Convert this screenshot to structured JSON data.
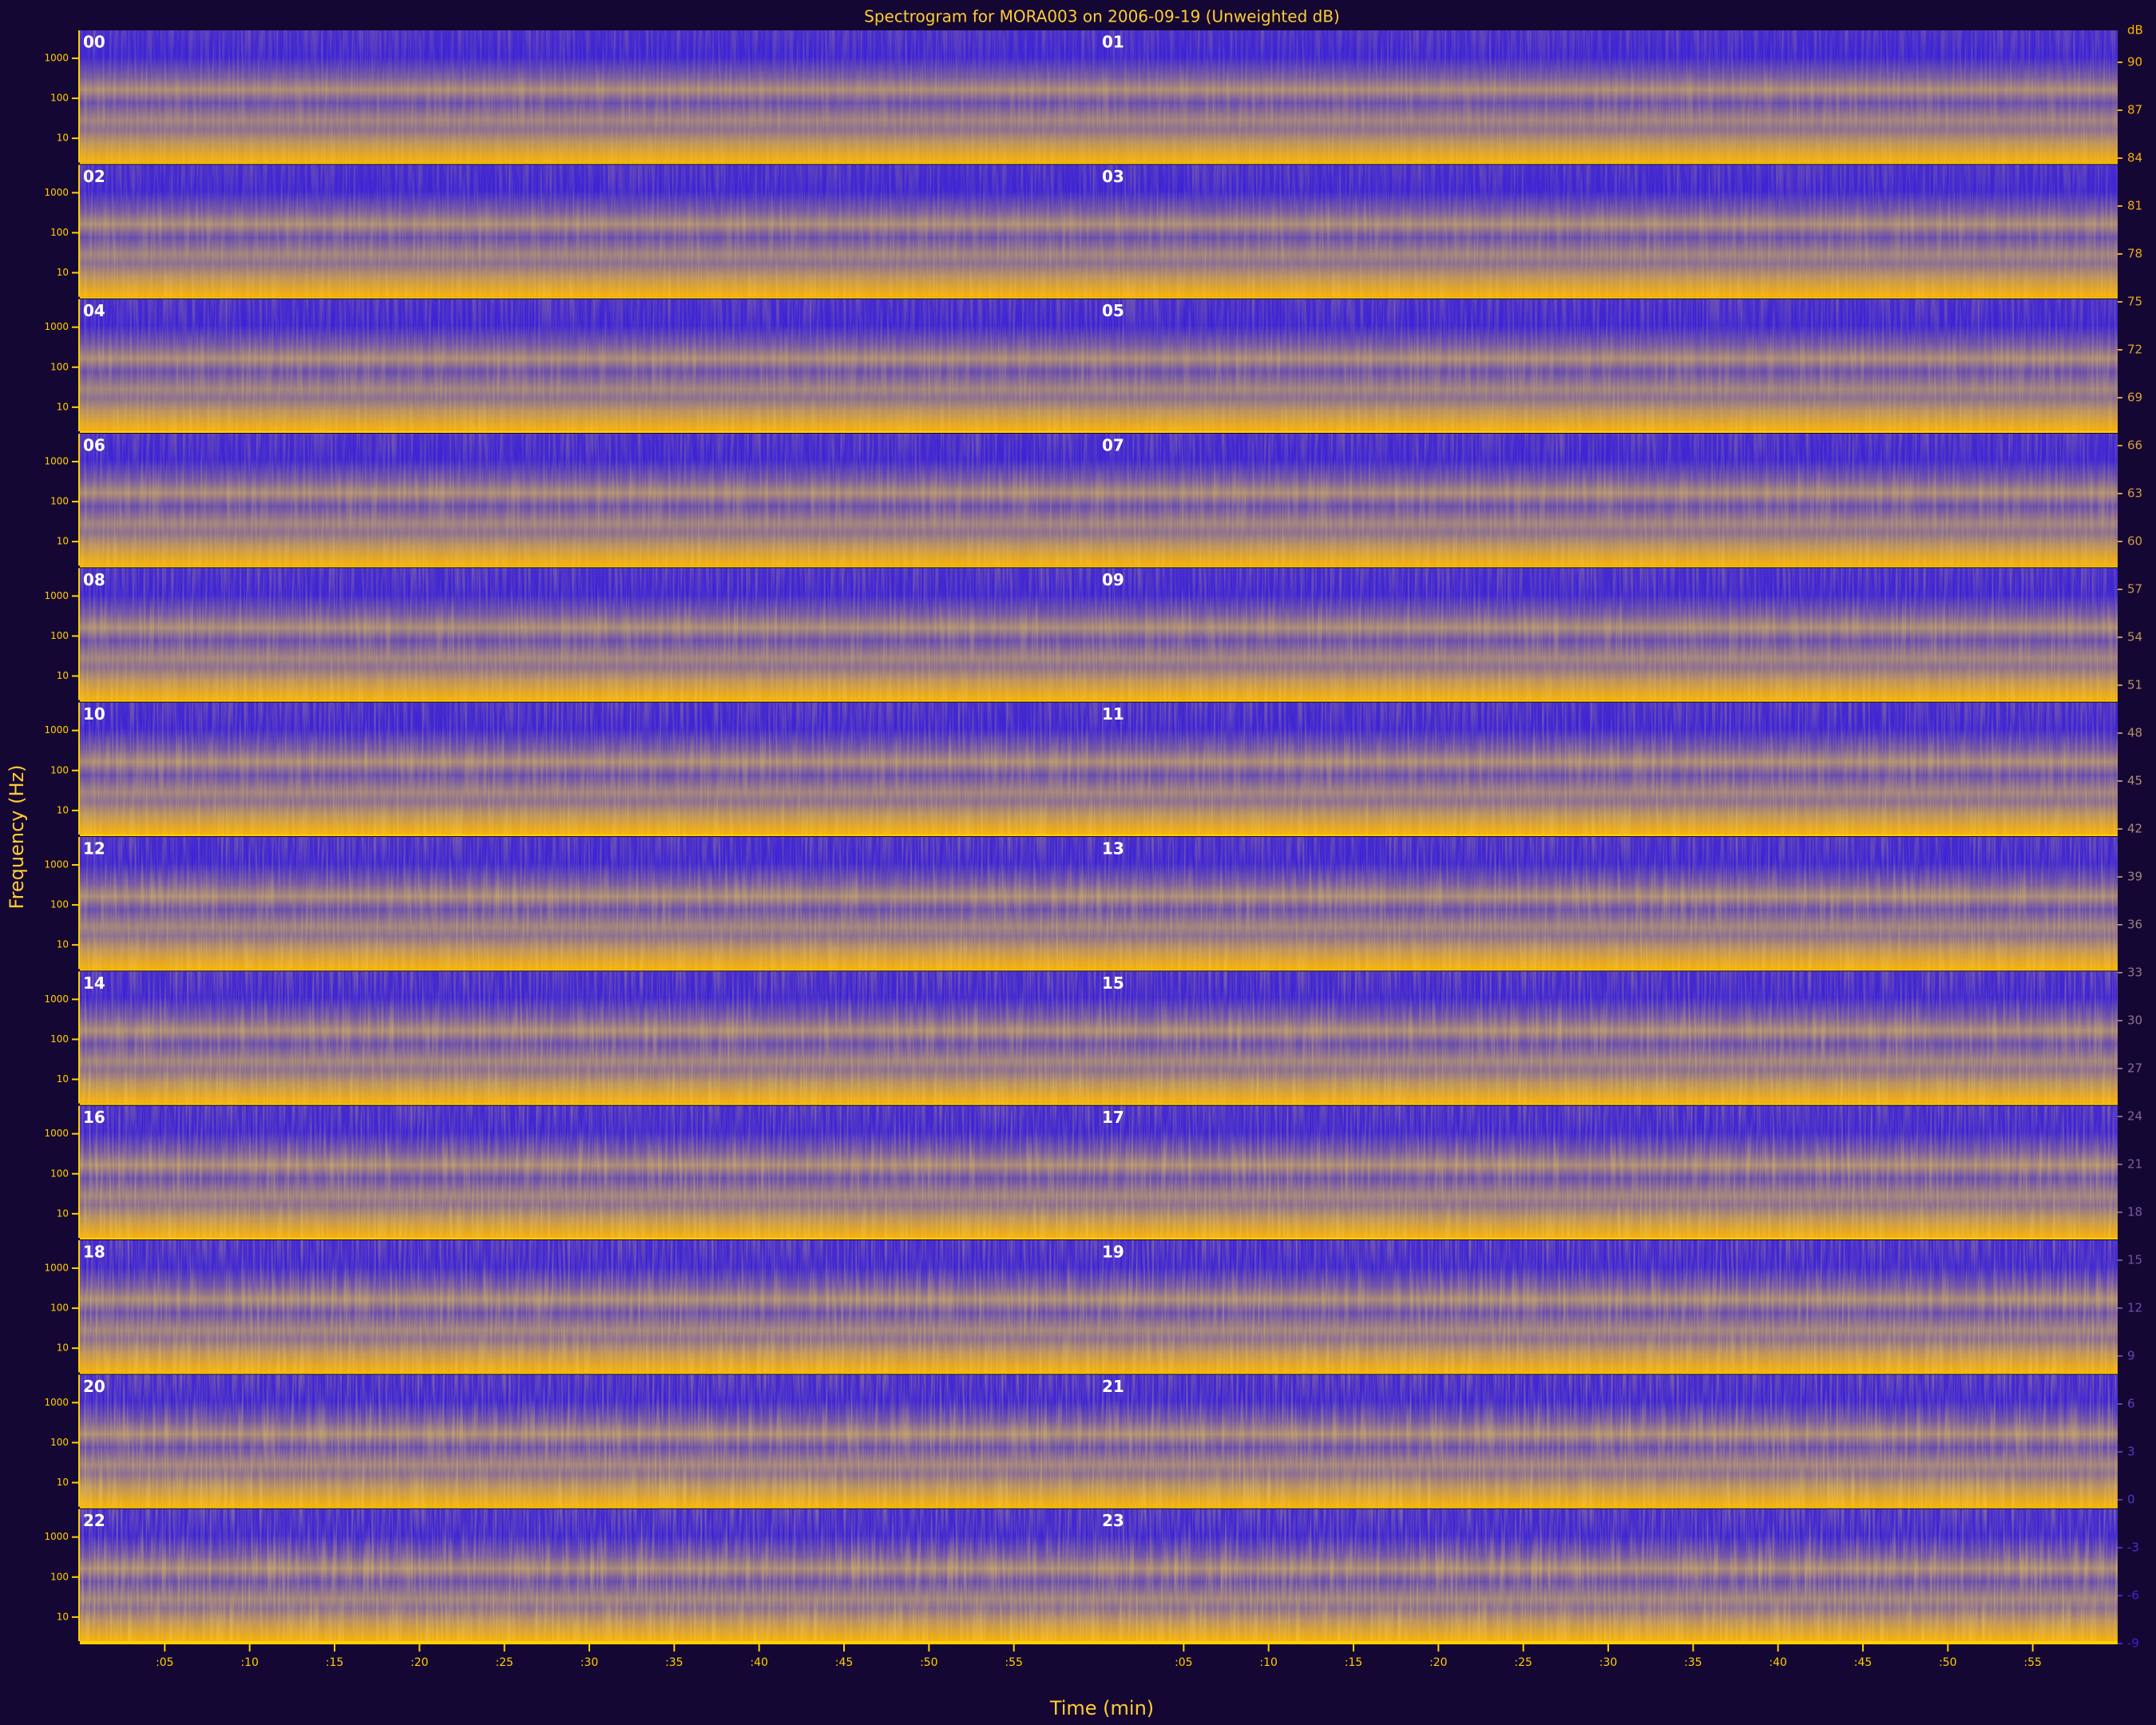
{
  "chart_data": {
    "type": "spectrogram",
    "title": "Spectrogram for MORA003 on 2006-09-19 (Unweighted dB)",
    "x_label": "Time (min)",
    "y_label": "Frequency (Hz)",
    "hours": [
      "00",
      "01",
      "02",
      "03",
      "04",
      "05",
      "06",
      "07",
      "08",
      "09",
      "10",
      "11",
      "12",
      "13",
      "14",
      "15",
      "16",
      "17",
      "18",
      "19",
      "20",
      "21",
      "22",
      "23"
    ],
    "xlim": [
      0,
      60
    ],
    "xticks": [
      {
        "value": 5,
        "label": ":05"
      },
      {
        "value": 10,
        "label": ":10"
      },
      {
        "value": 15,
        "label": ":15"
      },
      {
        "value": 20,
        "label": ":20"
      },
      {
        "value": 25,
        "label": ":25"
      },
      {
        "value": 30,
        "label": ":30"
      },
      {
        "value": 35,
        "label": ":35"
      },
      {
        "value": 40,
        "label": ":40"
      },
      {
        "value": 45,
        "label": ":45"
      },
      {
        "value": 50,
        "label": ":50"
      },
      {
        "value": 55,
        "label": ":55"
      }
    ],
    "ylim": [
      2.5,
      5000
    ],
    "log_y": true,
    "yticks": [
      1000,
      100,
      10
    ],
    "colorbar_label": "dB",
    "colorbar_lim": [
      -9,
      92
    ],
    "colorbar_ticks": [
      90,
      87,
      84,
      81,
      78,
      75,
      72,
      69,
      66,
      63,
      60,
      57,
      54,
      51,
      48,
      45,
      42,
      39,
      36,
      33,
      30,
      27,
      24,
      21,
      18,
      15,
      12,
      9,
      6,
      3,
      0,
      -3,
      -6,
      -9
    ],
    "colormap": [
      "#3b22d6",
      "#a98a78",
      "#ffb400"
    ]
  }
}
